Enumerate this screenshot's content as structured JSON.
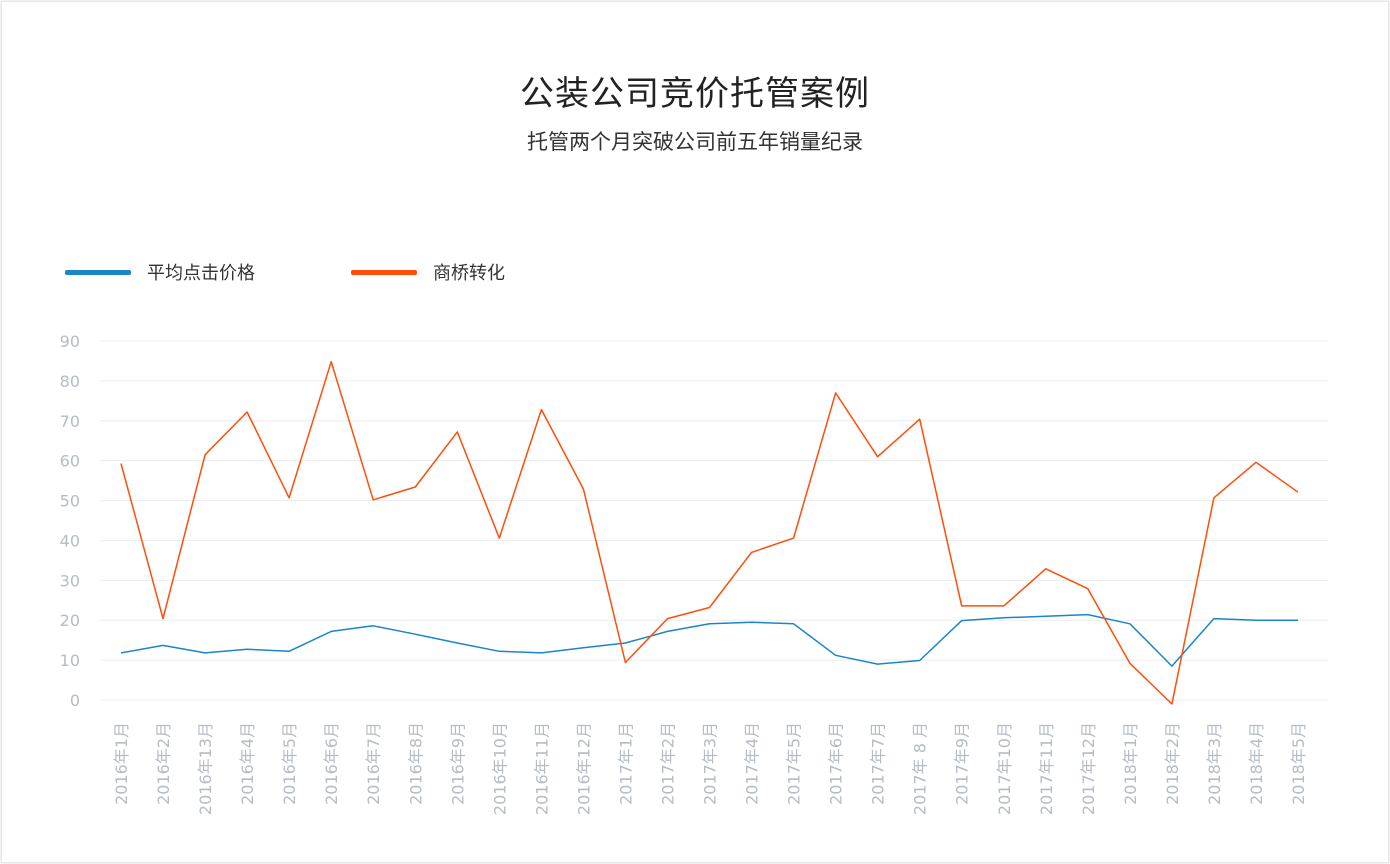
{
  "title": "公装公司竞价托管案例",
  "subtitle": "托管两个月突破公司前五年销量纪录",
  "colors": {
    "series1": "#1a86c8",
    "series2": "#ff4d0a",
    "grid": "#ececec",
    "tick_text": "#b6bcc4"
  },
  "chart_data": {
    "type": "line",
    "title": "公装公司竞价托管案例",
    "subtitle": "托管两个月突破公司前五年销量纪录",
    "xlabel": "",
    "ylabel": "",
    "ylim": [
      0,
      90
    ],
    "yticks": [
      "90",
      "80",
      "70",
      "60",
      "50",
      "40",
      "30",
      "20",
      "10",
      "0"
    ],
    "grid": true,
    "legend_position": "top-left",
    "categories": [
      "2016年1月",
      "2016年2月",
      "2016年13月",
      "2016年4月",
      "2016年5月",
      "2016年6月",
      "2016年7月",
      "2016年8月",
      "2016年9月",
      "2016年10月",
      "2016年11月",
      "2016年12月",
      "2017年1月",
      "2017年2月",
      "2017年3月",
      "2017年4月",
      "2017年5月",
      "2017年6月",
      "2017年7月",
      "2017年 8 月",
      "2017年9月",
      "2017年10月",
      "2017年11月",
      "2017年12月",
      "2018年1月",
      "2018年2月",
      "2018年3月",
      "2018年4月",
      "2018年5月"
    ],
    "series": [
      {
        "name": "平均点击价格",
        "color": "#1a86c8",
        "values": [
          11.8,
          13.7,
          11.8,
          12.7,
          12.2,
          17.2,
          18.6,
          16.5,
          14.3,
          12.2,
          11.8,
          13.1,
          14.3,
          17.2,
          19.1,
          19.5,
          19.1,
          11.2,
          9.0,
          9.9,
          19.9,
          20.6,
          21.0,
          21.4,
          19.1,
          8.5,
          20.4,
          20.0,
          20.0
        ]
      },
      {
        "name": "商桥转化",
        "color": "#ff4d0a",
        "values": [
          59.3,
          20.4,
          61.5,
          72.2,
          50.7,
          84.8,
          50.2,
          53.4,
          67.2,
          40.6,
          72.8,
          52.9,
          9.4,
          20.4,
          23.2,
          37.0,
          40.6,
          77.0,
          61.0,
          70.4,
          23.6,
          23.6,
          32.9,
          27.9,
          9.2,
          -1.0,
          50.7,
          59.6,
          52.1
        ]
      }
    ]
  }
}
